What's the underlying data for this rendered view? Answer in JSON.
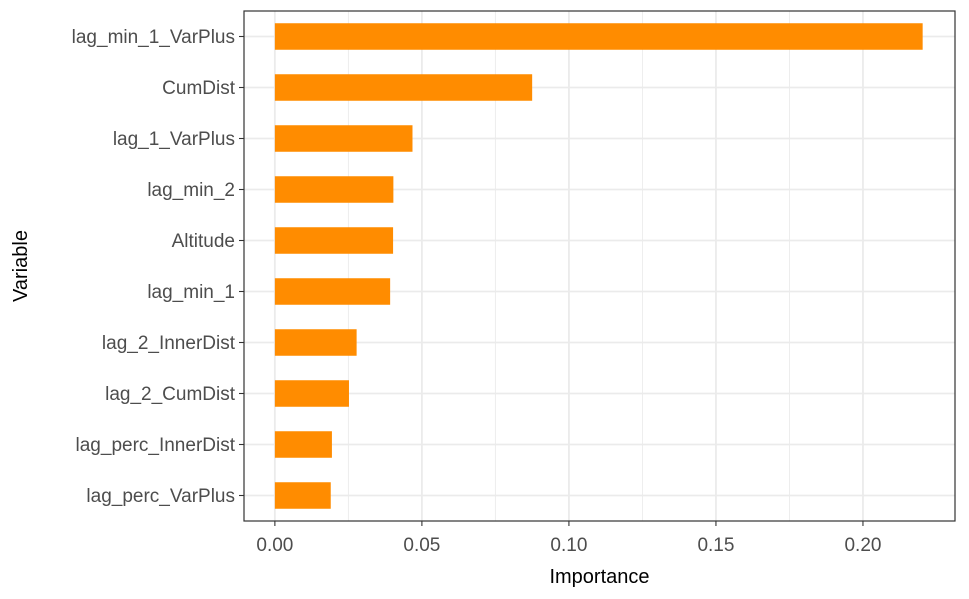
{
  "chart_data": {
    "type": "bar",
    "orientation": "horizontal",
    "title": "",
    "xlabel": "Importance",
    "ylabel": "Variable",
    "categories": [
      "lag_min_1_VarPlus",
      "CumDist",
      "lag_1_VarPlus",
      "lag_min_2",
      "Altitude",
      "lag_min_1",
      "lag_2_InnerDist",
      "lag_2_CumDist",
      "lag_perc_InnerDist",
      "lag_perc_VarPlus"
    ],
    "values": [
      0.2203,
      0.0875,
      0.0468,
      0.0403,
      0.0402,
      0.0392,
      0.0278,
      0.0252,
      0.0194,
      0.019
    ],
    "xlim": [
      -0.0105,
      0.2313
    ],
    "x_ticks": [
      "0.00",
      "0.05",
      "0.10",
      "0.15",
      "0.20"
    ],
    "x_tick_values": [
      0,
      0.05,
      0.1,
      0.15,
      0.2
    ],
    "grid": true,
    "legend": "none",
    "colors": {
      "bar": "#FF8C00",
      "grid": "#EBEBEB",
      "panel_border": "#333333",
      "tick_text": "#4D4D4D",
      "title_text": "#000000"
    }
  }
}
